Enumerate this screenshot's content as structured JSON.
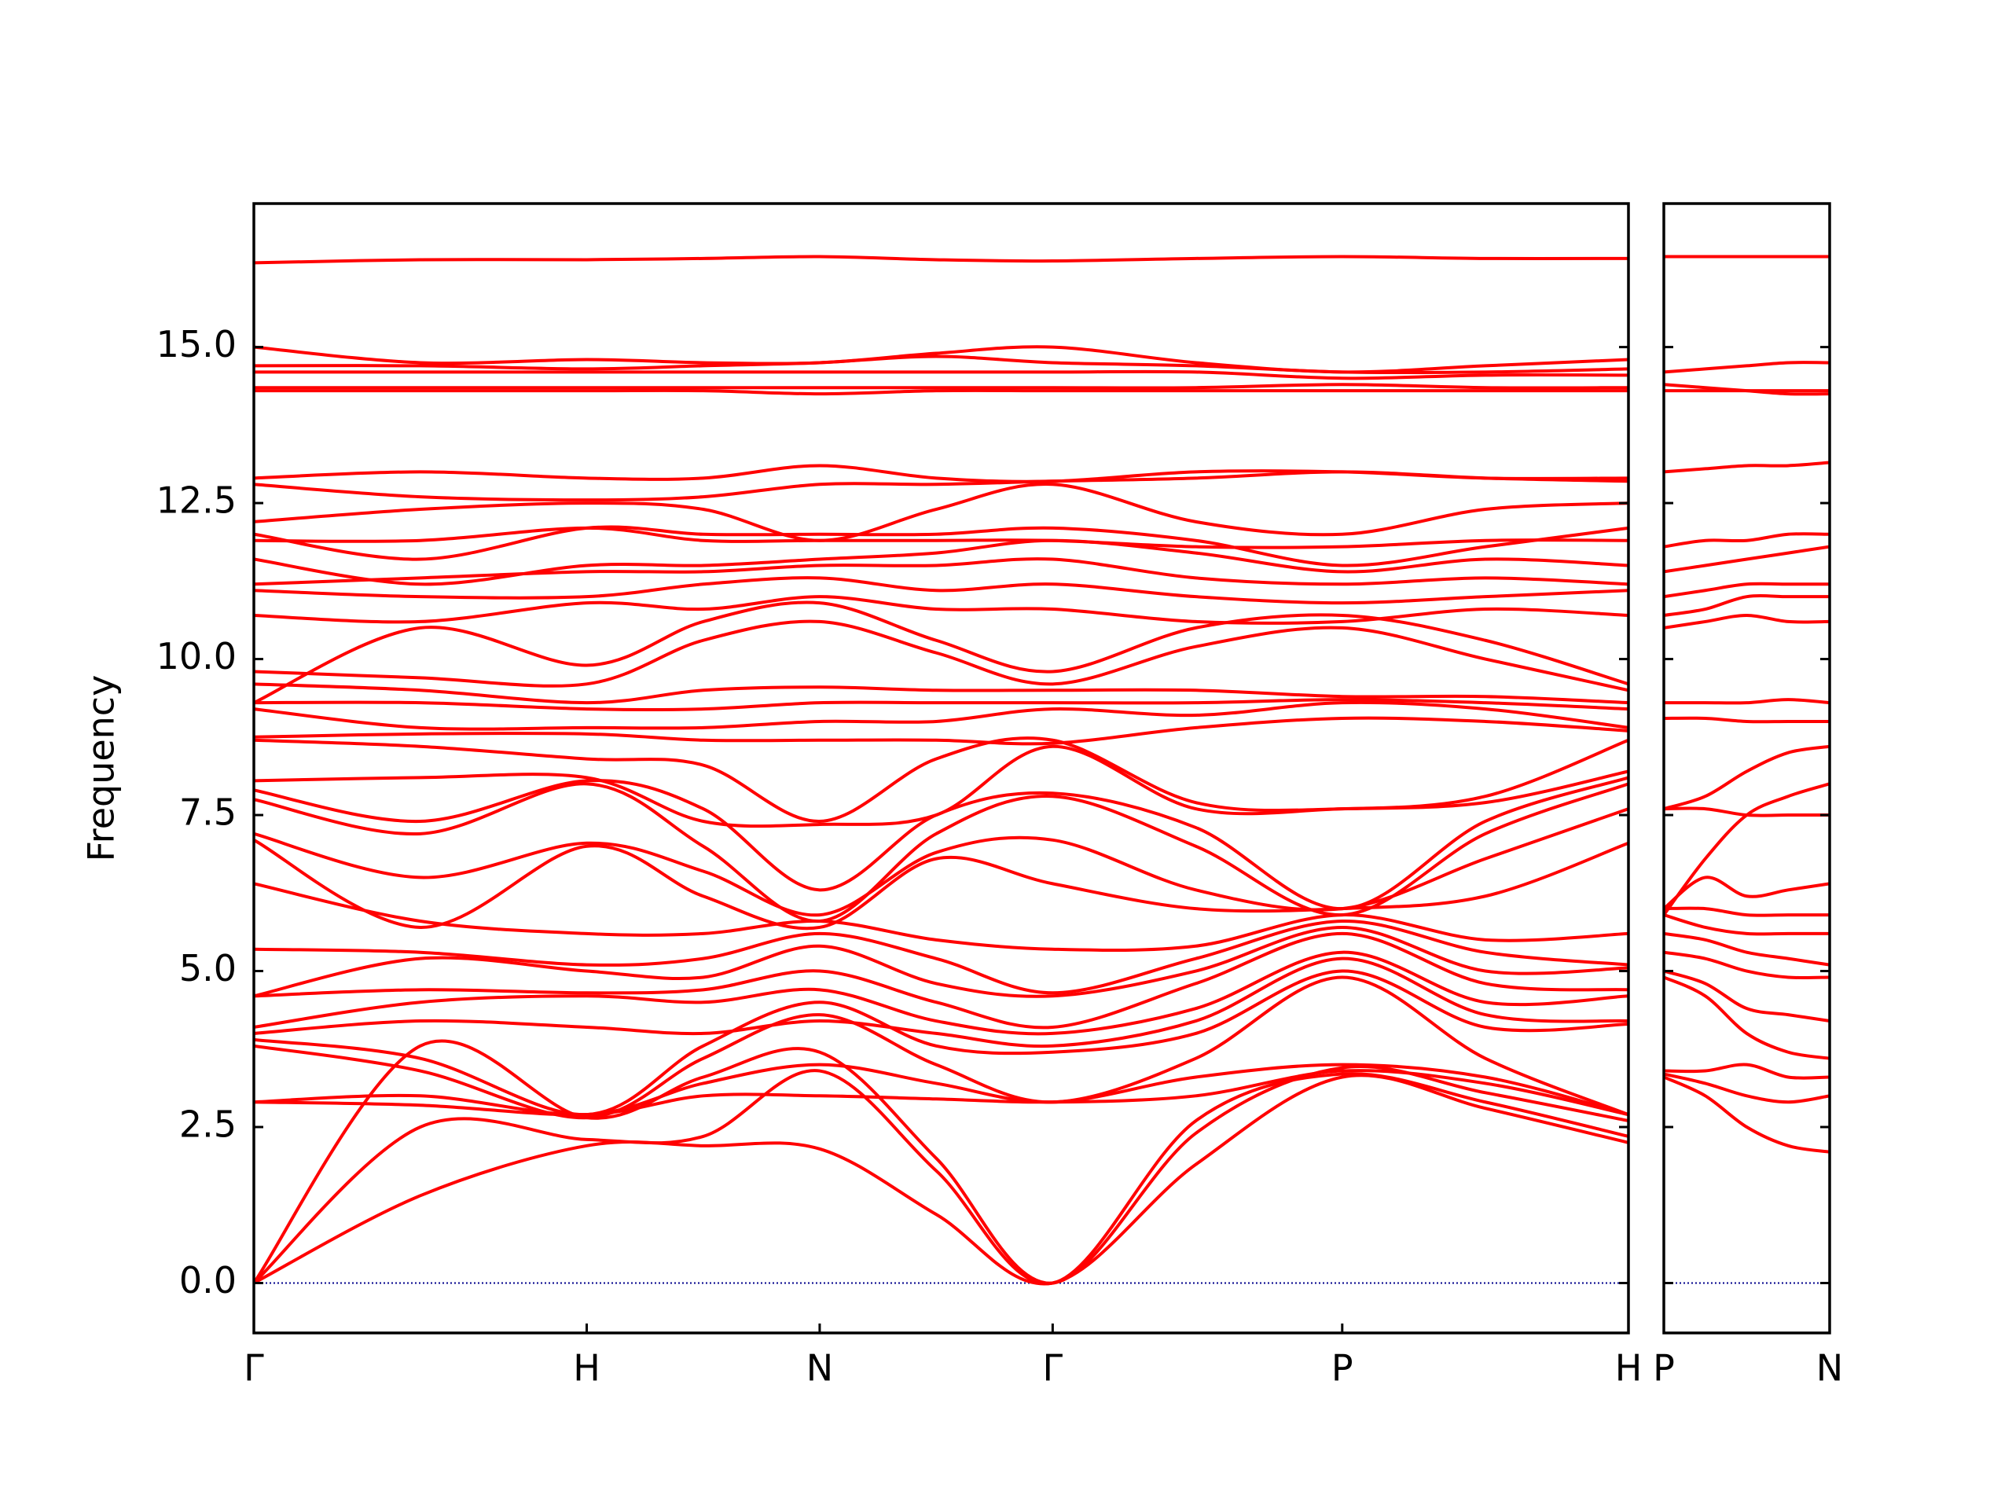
{
  "chart_data": [
    {
      "type": "line",
      "y_label": "Frequency",
      "color": "#ff0000",
      "hline": {
        "y": 0,
        "color": "#00008b",
        "style": "dotted"
      },
      "x": [
        0,
        0.5,
        1.0,
        1.35,
        1.7,
        2.05,
        2.4,
        2.83,
        3.27,
        3.7,
        4.13
      ],
      "xlim": [
        0,
        4.13
      ],
      "xticks": [
        {
          "value": 0,
          "label": "Γ"
        },
        {
          "value": 1.0,
          "label": "H"
        },
        {
          "value": 1.7,
          "label": "N"
        },
        {
          "value": 2.4,
          "label": "Γ"
        },
        {
          "value": 3.27,
          "label": "P"
        },
        {
          "value": 4.13,
          "label": "H"
        }
      ],
      "ylim": [
        -0.8,
        17.3
      ],
      "yticks": [
        {
          "value": 0,
          "label": "0.0"
        },
        2.5,
        {
          "value": 5,
          "label": "5.0"
        },
        7.5,
        {
          "value": 10,
          "label": "10.0"
        },
        12.5,
        {
          "value": 15,
          "label": "15.0"
        }
      ],
      "series": [
        {
          "values": [
            0,
            1.4,
            2.2,
            2.2,
            2.15,
            1.1,
            0,
            1.9,
            3.3,
            2.8,
            2.25
          ]
        },
        {
          "values": [
            0,
            2.5,
            2.3,
            2.35,
            3.4,
            1.8,
            0,
            2.6,
            3.35,
            2.9,
            2.35
          ]
        },
        {
          "values": [
            0,
            3.8,
            2.65,
            3.3,
            3.7,
            2.0,
            0,
            2.4,
            3.45,
            3.05,
            2.6
          ]
        },
        {
          "values": [
            2.9,
            2.85,
            2.7,
            3.0,
            3.0,
            2.95,
            2.9,
            3.0,
            3.4,
            3.2,
            2.7
          ]
        },
        {
          "values": [
            2.9,
            3.0,
            2.7,
            3.2,
            3.5,
            3.2,
            2.9,
            3.3,
            3.5,
            3.3,
            2.7
          ]
        },
        {
          "values": [
            3.8,
            3.4,
            2.65,
            3.6,
            4.3,
            3.5,
            2.9,
            3.6,
            4.9,
            3.6,
            2.7
          ]
        },
        {
          "values": [
            3.9,
            3.6,
            2.7,
            3.8,
            4.5,
            3.8,
            3.7,
            4.0,
            5.0,
            4.1,
            4.15
          ]
        },
        {
          "values": [
            4.0,
            4.2,
            4.1,
            4.0,
            4.2,
            4.0,
            3.8,
            4.2,
            5.2,
            4.3,
            4.2
          ]
        },
        {
          "values": [
            4.1,
            4.5,
            4.6,
            4.5,
            4.7,
            4.2,
            4.0,
            4.4,
            5.3,
            4.5,
            4.6
          ]
        },
        {
          "values": [
            4.6,
            4.7,
            4.65,
            4.7,
            5.0,
            4.5,
            4.1,
            4.8,
            5.6,
            4.8,
            4.7
          ]
        },
        {
          "values": [
            4.6,
            5.2,
            5.0,
            4.9,
            5.4,
            4.8,
            4.6,
            5.0,
            5.7,
            5.0,
            5.05
          ]
        },
        {
          "values": [
            5.35,
            5.3,
            5.1,
            5.2,
            5.6,
            5.2,
            4.65,
            5.2,
            5.8,
            5.3,
            5.1
          ]
        },
        {
          "values": [
            6.4,
            5.8,
            5.6,
            5.6,
            5.8,
            5.5,
            5.35,
            5.4,
            5.9,
            5.5,
            5.6
          ]
        },
        {
          "values": [
            7.1,
            5.7,
            7.0,
            6.2,
            5.7,
            6.8,
            6.4,
            6.0,
            6.0,
            6.2,
            7.05
          ]
        },
        {
          "values": [
            7.2,
            6.5,
            7.05,
            6.6,
            5.9,
            6.9,
            7.1,
            6.3,
            6.0,
            6.8,
            7.6
          ]
        },
        {
          "values": [
            7.75,
            7.2,
            8.0,
            7.0,
            5.8,
            7.2,
            7.8,
            7.0,
            5.9,
            7.2,
            8.0
          ]
        },
        {
          "values": [
            7.9,
            7.4,
            8.05,
            7.6,
            6.3,
            7.5,
            7.85,
            7.3,
            6.0,
            7.4,
            8.1
          ]
        },
        {
          "values": [
            8.05,
            8.1,
            8.1,
            7.4,
            7.35,
            7.5,
            8.6,
            7.6,
            7.6,
            7.7,
            8.2
          ]
        },
        {
          "values": [
            8.7,
            8.6,
            8.4,
            8.3,
            7.4,
            8.4,
            8.7,
            7.7,
            7.6,
            7.8,
            8.7
          ]
        },
        {
          "values": [
            8.75,
            8.8,
            8.8,
            8.7,
            8.7,
            8.7,
            8.65,
            8.9,
            9.05,
            9.0,
            8.85
          ]
        },
        {
          "values": [
            9.2,
            8.9,
            8.9,
            8.9,
            9.0,
            9.0,
            9.2,
            9.1,
            9.3,
            9.2,
            8.9
          ]
        },
        {
          "values": [
            9.3,
            9.3,
            9.2,
            9.2,
            9.3,
            9.3,
            9.3,
            9.3,
            9.35,
            9.3,
            9.2
          ]
        },
        {
          "values": [
            9.6,
            9.5,
            9.3,
            9.5,
            9.55,
            9.5,
            9.5,
            9.5,
            9.4,
            9.4,
            9.3
          ]
        },
        {
          "values": [
            9.8,
            9.7,
            9.6,
            10.3,
            10.6,
            10.1,
            9.6,
            10.2,
            10.5,
            10.0,
            9.5
          ]
        },
        {
          "values": [
            9.3,
            10.5,
            9.9,
            10.6,
            10.9,
            10.3,
            9.8,
            10.5,
            10.7,
            10.3,
            9.6
          ]
        },
        {
          "values": [
            10.7,
            10.6,
            10.9,
            10.8,
            11.0,
            10.8,
            10.8,
            10.6,
            10.6,
            10.8,
            10.7
          ]
        },
        {
          "values": [
            11.1,
            11.0,
            11.0,
            11.2,
            11.3,
            11.1,
            11.2,
            11.0,
            10.9,
            11.0,
            11.1
          ]
        },
        {
          "values": [
            11.2,
            11.3,
            11.4,
            11.4,
            11.5,
            11.5,
            11.6,
            11.3,
            11.2,
            11.3,
            11.2
          ]
        },
        {
          "values": [
            11.6,
            11.2,
            11.5,
            11.5,
            11.6,
            11.7,
            11.9,
            11.7,
            11.4,
            11.6,
            11.5
          ]
        },
        {
          "values": [
            11.9,
            11.9,
            12.1,
            11.9,
            11.9,
            11.9,
            11.9,
            11.8,
            11.8,
            11.9,
            11.9
          ]
        },
        {
          "values": [
            12.0,
            11.6,
            12.1,
            12.0,
            12.0,
            12.0,
            12.1,
            11.9,
            11.5,
            11.8,
            12.1
          ]
        },
        {
          "values": [
            12.2,
            12.4,
            12.5,
            12.4,
            11.9,
            12.4,
            12.8,
            12.2,
            12.0,
            12.4,
            12.5
          ]
        },
        {
          "values": [
            12.8,
            12.6,
            12.55,
            12.6,
            12.8,
            12.8,
            12.85,
            12.9,
            13.0,
            12.9,
            12.85
          ]
        },
        {
          "values": [
            12.9,
            13.0,
            12.9,
            12.9,
            13.1,
            12.9,
            12.85,
            13.0,
            13.0,
            12.9,
            12.9
          ]
        },
        {
          "values": [
            14.3,
            14.3,
            14.3,
            14.3,
            14.25,
            14.3,
            14.3,
            14.3,
            14.3,
            14.3,
            14.3
          ]
        },
        {
          "values": [
            14.35,
            14.35,
            14.35,
            14.35,
            14.35,
            14.35,
            14.35,
            14.35,
            14.4,
            14.35,
            14.35
          ]
        },
        {
          "values": [
            14.6,
            14.6,
            14.6,
            14.6,
            14.6,
            14.6,
            14.6,
            14.6,
            14.5,
            14.55,
            14.55
          ]
        },
        {
          "values": [
            14.7,
            14.7,
            14.65,
            14.7,
            14.75,
            14.85,
            14.75,
            14.7,
            14.6,
            14.6,
            14.65
          ]
        },
        {
          "values": [
            15.0,
            14.75,
            14.8,
            14.75,
            14.75,
            14.9,
            15.0,
            14.75,
            14.6,
            14.7,
            14.8
          ]
        },
        {
          "values": [
            16.35,
            16.4,
            16.4,
            16.42,
            16.45,
            16.4,
            16.38,
            16.42,
            16.45,
            16.42,
            16.42
          ]
        }
      ]
    },
    {
      "type": "line",
      "color": "#ff0000",
      "hline": {
        "y": 0,
        "color": "#00008b",
        "style": "dotted"
      },
      "x": [
        0,
        0.125,
        0.25,
        0.375,
        0.5
      ],
      "xlim": [
        0,
        0.5
      ],
      "xticks": [
        {
          "value": 0,
          "label": "P"
        },
        {
          "value": 0.5,
          "label": "N"
        }
      ],
      "ylim": [
        -0.8,
        17.3
      ],
      "yticks": [
        0,
        2.5,
        5,
        7.5,
        10,
        12.5,
        15
      ],
      "series": [
        {
          "values": [
            3.3,
            3.0,
            2.5,
            2.2,
            2.1
          ]
        },
        {
          "values": [
            3.35,
            3.2,
            3.0,
            2.9,
            3.0
          ]
        },
        {
          "values": [
            3.4,
            3.4,
            3.5,
            3.3,
            3.3
          ]
        },
        {
          "values": [
            4.9,
            4.6,
            4.0,
            3.7,
            3.6
          ]
        },
        {
          "values": [
            5.0,
            4.8,
            4.4,
            4.3,
            4.2
          ]
        },
        {
          "values": [
            5.3,
            5.2,
            5.0,
            4.9,
            4.9
          ]
        },
        {
          "values": [
            5.6,
            5.5,
            5.3,
            5.2,
            5.1
          ]
        },
        {
          "values": [
            5.9,
            5.7,
            5.6,
            5.6,
            5.6
          ]
        },
        {
          "values": [
            6.0,
            6.0,
            5.9,
            5.9,
            5.9
          ]
        },
        {
          "values": [
            6.0,
            6.5,
            6.2,
            6.3,
            6.4
          ]
        },
        {
          "values": [
            5.9,
            6.8,
            7.5,
            7.8,
            8.0
          ]
        },
        {
          "values": [
            7.6,
            7.6,
            7.5,
            7.5,
            7.5
          ]
        },
        {
          "values": [
            7.6,
            7.8,
            8.2,
            8.5,
            8.6
          ]
        },
        {
          "values": [
            9.05,
            9.05,
            9.0,
            9.0,
            9.0
          ]
        },
        {
          "values": [
            9.3,
            9.3,
            9.3,
            9.35,
            9.3
          ]
        },
        {
          "values": [
            10.5,
            10.6,
            10.7,
            10.6,
            10.6
          ]
        },
        {
          "values": [
            10.7,
            10.8,
            11.0,
            11.0,
            11.0
          ]
        },
        {
          "values": [
            11.0,
            11.1,
            11.2,
            11.2,
            11.2
          ]
        },
        {
          "values": [
            11.4,
            11.5,
            11.6,
            11.7,
            11.8
          ]
        },
        {
          "values": [
            11.8,
            11.9,
            11.9,
            12.0,
            12.0
          ]
        },
        {
          "values": [
            13.0,
            13.05,
            13.1,
            13.1,
            13.15
          ]
        },
        {
          "values": [
            14.3,
            14.3,
            14.3,
            14.3,
            14.3
          ]
        },
        {
          "values": [
            14.4,
            14.35,
            14.3,
            14.25,
            14.25
          ]
        },
        {
          "values": [
            14.6,
            14.65,
            14.7,
            14.75,
            14.75
          ]
        },
        {
          "values": [
            16.45,
            16.45,
            16.45,
            16.45,
            16.45
          ]
        }
      ]
    }
  ]
}
